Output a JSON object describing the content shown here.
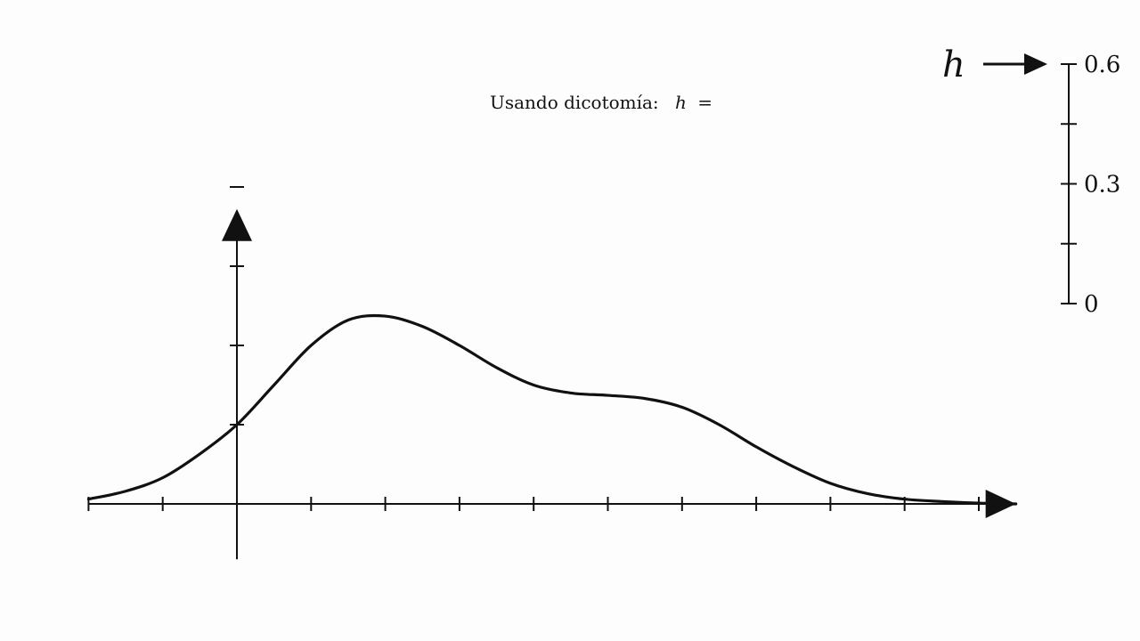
{
  "caption": {
    "prefix": "Usando dicotomía:",
    "var": "h",
    "eq": "="
  },
  "colors": {
    "ink": "#111111",
    "background": "#fdfdfd"
  },
  "chart_data": [
    {
      "type": "line",
      "xlim": [
        -2,
        10.5
      ],
      "ylim": [
        -0.7,
        3.7
      ],
      "x_ticks": [
        -2,
        -1,
        1,
        2,
        3,
        4,
        5,
        6,
        7,
        8,
        9,
        10
      ],
      "y_ticks": [
        1,
        2,
        3,
        4
      ],
      "series": [
        {
          "x": [
            -2.0,
            -1.5,
            -1.0,
            -0.5,
            0.0,
            0.5,
            1.0,
            1.5,
            2.0,
            2.5,
            3.0,
            3.5,
            4.0,
            4.5,
            5.0,
            5.5,
            6.0,
            6.5,
            7.0,
            7.5,
            8.0,
            8.5,
            9.0,
            9.5,
            10.0,
            10.5
          ],
          "y": [
            0.06,
            0.16,
            0.33,
            0.63,
            1.0,
            1.5,
            2.0,
            2.32,
            2.37,
            2.24,
            2.0,
            1.72,
            1.5,
            1.4,
            1.37,
            1.33,
            1.22,
            1.0,
            0.72,
            0.47,
            0.26,
            0.13,
            0.06,
            0.03,
            0.01,
            0.0
          ]
        }
      ]
    },
    {
      "type": "gauge",
      "label": "h",
      "ylim": [
        0,
        0.6
      ],
      "ticks": [
        0,
        0.15,
        0.3,
        0.45,
        0.6
      ],
      "tick_labels": [
        "0",
        "0.3",
        "0.6"
      ],
      "value": 0.6
    }
  ]
}
